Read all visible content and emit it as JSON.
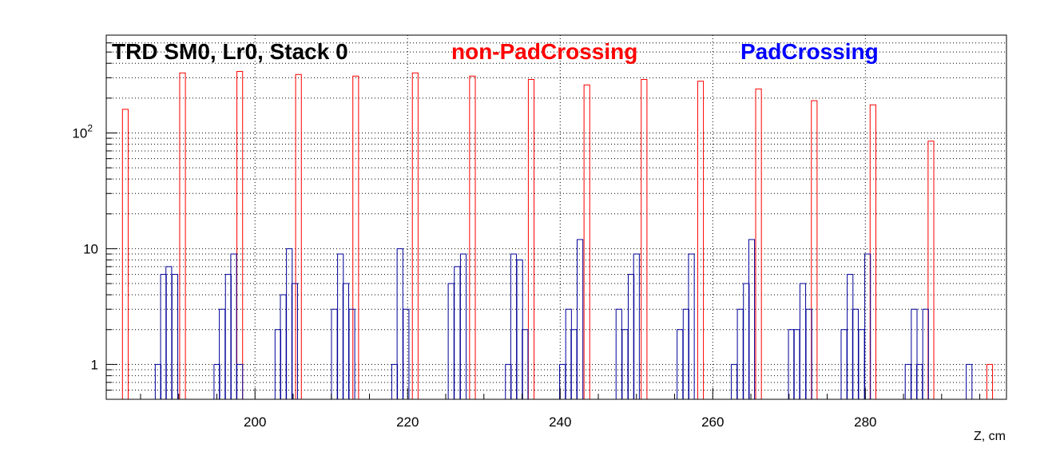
{
  "chart_data": {
    "type": "bar",
    "title": "TRD SM0, Lr0, Stack 0",
    "xlabel": "Z, cm",
    "ylabel": "",
    "xlim": [
      180.5,
      298.5
    ],
    "ylim": [
      0.5,
      700
    ],
    "yscale": "log",
    "grid": true,
    "bin_width": 0.75,
    "x_ticks": [
      200,
      220,
      240,
      260,
      280
    ],
    "y_ticks": [
      {
        "value": 1,
        "base": "1",
        "exp": ""
      },
      {
        "value": 10,
        "base": "10",
        "exp": ""
      },
      {
        "value": 100,
        "base": "10",
        "exp": "2"
      }
    ],
    "series": [
      {
        "name": "non-PadCrossing",
        "color": "#ff0000",
        "bins": [
          [
            183.0,
            160
          ],
          [
            190.5,
            330
          ],
          [
            198.0,
            340
          ],
          [
            205.7,
            320
          ],
          [
            213.2,
            310
          ],
          [
            221.0,
            330
          ],
          [
            228.5,
            310
          ],
          [
            236.2,
            290
          ],
          [
            243.5,
            260
          ],
          [
            251.0,
            290
          ],
          [
            258.4,
            280
          ],
          [
            266.0,
            240
          ],
          [
            273.3,
            190
          ],
          [
            281.0,
            175
          ],
          [
            288.6,
            85
          ],
          [
            296.3,
            1
          ]
        ]
      },
      {
        "name": "PadCrossing",
        "color": "#000099",
        "bins": [
          [
            187.3,
            1
          ],
          [
            188.0,
            6
          ],
          [
            188.7,
            7
          ],
          [
            189.5,
            6
          ],
          [
            195.0,
            1
          ],
          [
            195.7,
            3
          ],
          [
            196.5,
            6
          ],
          [
            197.2,
            9
          ],
          [
            198.0,
            1
          ],
          [
            203.0,
            2
          ],
          [
            203.7,
            4
          ],
          [
            204.5,
            10
          ],
          [
            205.2,
            5
          ],
          [
            210.4,
            3
          ],
          [
            211.2,
            9
          ],
          [
            211.9,
            5
          ],
          [
            212.7,
            3
          ],
          [
            218.3,
            1
          ],
          [
            219.0,
            10
          ],
          [
            219.8,
            3
          ],
          [
            225.7,
            5
          ],
          [
            226.5,
            7
          ],
          [
            227.3,
            9
          ],
          [
            233.2,
            1
          ],
          [
            233.9,
            9
          ],
          [
            234.7,
            8
          ],
          [
            235.4,
            2
          ],
          [
            240.3,
            1
          ],
          [
            241.1,
            3
          ],
          [
            241.8,
            2
          ],
          [
            242.6,
            12
          ],
          [
            247.7,
            3
          ],
          [
            248.5,
            2
          ],
          [
            249.3,
            6
          ],
          [
            250.0,
            9
          ],
          [
            255.7,
            2
          ],
          [
            256.5,
            3
          ],
          [
            257.2,
            9
          ],
          [
            262.8,
            1
          ],
          [
            263.6,
            3
          ],
          [
            264.4,
            5
          ],
          [
            265.1,
            12
          ],
          [
            270.3,
            2
          ],
          [
            271.0,
            2
          ],
          [
            271.8,
            5
          ],
          [
            272.6,
            3
          ],
          [
            277.2,
            2
          ],
          [
            278.0,
            6
          ],
          [
            278.7,
            3
          ],
          [
            279.5,
            2
          ],
          [
            280.3,
            9
          ],
          [
            285.6,
            1
          ],
          [
            286.4,
            3
          ],
          [
            287.1,
            1
          ],
          [
            287.9,
            3
          ],
          [
            293.6,
            1
          ]
        ]
      }
    ],
    "legend": [
      {
        "label": "non-PadCrossing",
        "color": "#ff0000"
      },
      {
        "label": "PadCrossing",
        "color": "#0000ff"
      }
    ]
  }
}
